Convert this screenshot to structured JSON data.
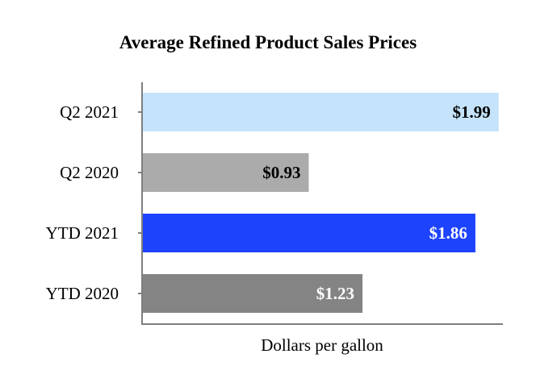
{
  "chart_data": {
    "type": "bar",
    "orientation": "horizontal",
    "title": "Average Refined Product Sales Prices",
    "xlabel": "Dollars per gallon",
    "ylabel": "",
    "xlim": [
      0,
      2.0
    ],
    "grid": false,
    "categories": [
      "Q2 2021",
      "Q2 2020",
      "YTD 2021",
      "YTD 2020"
    ],
    "values": [
      1.99,
      0.93,
      1.86,
      1.23
    ],
    "value_labels": [
      "$1.99",
      "$0.93",
      "$1.86",
      "$1.23"
    ],
    "bar_colors": [
      "#c5e3fb",
      "#ababab",
      "#1e43fc",
      "#848484"
    ],
    "label_colors": [
      "#000000",
      "#000000",
      "#ffffff",
      "#ffffff"
    ]
  }
}
